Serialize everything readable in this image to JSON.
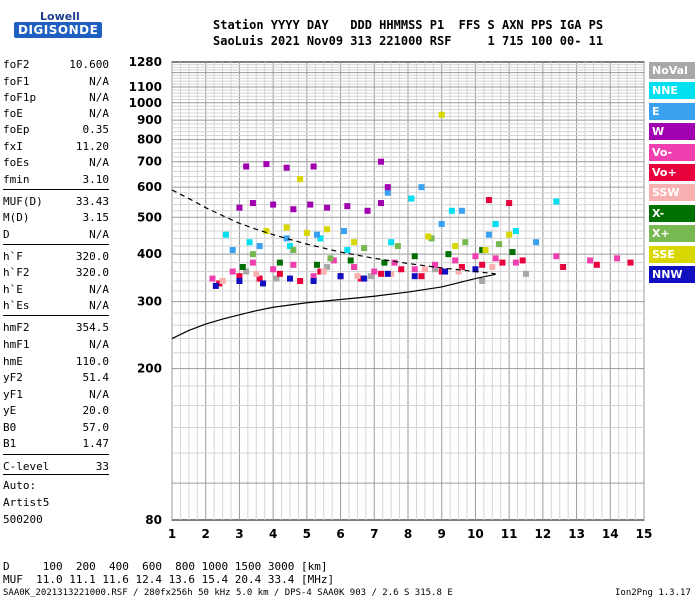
{
  "logo": {
    "lowell": "Lowell",
    "digisonde": "DIGISONDE"
  },
  "header": {
    "line1": "Station YYYY DAY   DDD HHMMSS P1  FFS S AXN PPS IGA PS",
    "line2": "SaoLuis 2021 Nov09 313 221000 RSF     1 715 100 00- 11"
  },
  "params": [
    {
      "name": "foF2",
      "value": "10.600"
    },
    {
      "name": "foF1",
      "value": "N/A"
    },
    {
      "name": "foF1p",
      "value": "N/A"
    },
    {
      "name": "foE",
      "value": "N/A"
    },
    {
      "name": "foEp",
      "value": "0.35"
    },
    {
      "name": "fxI",
      "value": "11.20"
    },
    {
      "name": "foEs",
      "value": "N/A"
    },
    {
      "name": "fmin",
      "value": "3.10"
    },
    {
      "name": "MUF(D)",
      "value": "33.43"
    },
    {
      "name": "M(D)",
      "value": "3.15"
    },
    {
      "name": "D",
      "value": "N/A"
    },
    {
      "name": "h`F",
      "value": "320.0"
    },
    {
      "name": "h`F2",
      "value": "320.0"
    },
    {
      "name": "h`E",
      "value": "N/A"
    },
    {
      "name": "h`Es",
      "value": "N/A"
    },
    {
      "name": "hmF2",
      "value": "354.5"
    },
    {
      "name": "hmF1",
      "value": "N/A"
    },
    {
      "name": "hmE",
      "value": "110.0"
    },
    {
      "name": "yF2",
      "value": "51.4"
    },
    {
      "name": "yF1",
      "value": "N/A"
    },
    {
      "name": "yE",
      "value": "20.0"
    },
    {
      "name": "B0",
      "value": "57.0"
    },
    {
      "name": "B1",
      "value": "1.47"
    },
    {
      "name": "C-level",
      "value": "33"
    }
  ],
  "auto": {
    "line1": "Auto:",
    "line2": "Artist5",
    "line3": "500200"
  },
  "legend": [
    {
      "label": "NoVal",
      "color": "#a8a8a8"
    },
    {
      "label": "NNE",
      "color": "#00e0f0"
    },
    {
      "label": "E",
      "color": "#3aa0f0"
    },
    {
      "label": "W",
      "color": "#a000b0"
    },
    {
      "label": "Vo-",
      "color": "#f040b0"
    },
    {
      "label": "Vo+",
      "color": "#e8003c"
    },
    {
      "label": "SSW",
      "color": "#f8b0b0"
    },
    {
      "label": "X-",
      "color": "#007000"
    },
    {
      "label": "X+",
      "color": "#78b850"
    },
    {
      "label": "SSE",
      "color": "#d8d800"
    },
    {
      "label": "NNW",
      "color": "#1010c0"
    }
  ],
  "footer": {
    "d_row": "D     100  200  400  600  800 1000 1500 3000 [km]",
    "muf_row": "MUF  11.0 11.1 11.6 12.4 13.6 15.4 20.4 33.4 [MHz]",
    "info": "SAA0K_2021313221000.RSF / 280fx256h 50 kHz 5.0 km / DPS-4 SAA0K 903 / 2.6 S 315.8 E",
    "version": "Ion2Png 1.3.17"
  },
  "chart_data": {
    "type": "scatter",
    "title": "",
    "xlabel": "",
    "ylabel": "",
    "xlim": [
      1,
      15
    ],
    "ylim": [
      80,
      1280
    ],
    "x_ticks": [
      1,
      2,
      3,
      4,
      5,
      6,
      7,
      8,
      9,
      10,
      11,
      12,
      13,
      14,
      15
    ],
    "y_tick_labels": [
      80,
      200,
      300,
      400,
      500,
      600,
      700,
      800,
      900,
      1000,
      1100,
      1280
    ],
    "y_scale": "log",
    "grid": true,
    "series": [
      {
        "name": "NoVal",
        "x": [
          3.2,
          4.1,
          5.6,
          6.9,
          8.8,
          10.2,
          11.5
        ],
        "y": [
          360,
          345,
          370,
          350,
          365,
          340,
          355
        ]
      },
      {
        "name": "NNE",
        "x": [
          2.6,
          3.3,
          4.5,
          5.4,
          6.2,
          7.5,
          8.1,
          9.3,
          10.6,
          11.2,
          12.4
        ],
        "y": [
          450,
          430,
          420,
          440,
          410,
          430,
          560,
          520,
          480,
          460,
          550
        ]
      },
      {
        "name": "E",
        "x": [
          2.8,
          3.6,
          4.4,
          5.3,
          6.1,
          7.4,
          8.4,
          9.0,
          9.6,
          10.4,
          11.8
        ],
        "y": [
          410,
          420,
          440,
          450,
          460,
          580,
          600,
          480,
          520,
          450,
          430
        ]
      },
      {
        "name": "W",
        "x": [
          3.0,
          3.4,
          4.0,
          4.6,
          5.1,
          5.6,
          6.2,
          6.8,
          7.2,
          3.2,
          3.8,
          4.4,
          5.2,
          7.2,
          7.4
        ],
        "y": [
          530,
          545,
          540,
          525,
          540,
          530,
          535,
          520,
          545,
          680,
          690,
          675,
          680,
          700,
          600
        ]
      },
      {
        "name": "Vo-",
        "x": [
          2.2,
          2.8,
          3.4,
          4.0,
          4.6,
          5.2,
          5.8,
          6.4,
          7.0,
          7.6,
          8.2,
          8.8,
          9.4,
          10.0,
          10.6,
          11.2,
          12.4,
          13.4,
          14.2
        ],
        "y": [
          345,
          360,
          380,
          365,
          375,
          350,
          385,
          370,
          360,
          380,
          365,
          375,
          385,
          395,
          390,
          380,
          395,
          385,
          390
        ]
      },
      {
        "name": "Vo+",
        "x": [
          2.4,
          3.0,
          3.6,
          4.2,
          4.8,
          5.4,
          6.0,
          6.6,
          7.2,
          7.8,
          8.4,
          9.0,
          9.6,
          10.2,
          10.8,
          11.4,
          10.4,
          11.0,
          12.6,
          13.6,
          14.6
        ],
        "y": [
          335,
          350,
          345,
          355,
          340,
          360,
          350,
          345,
          355,
          365,
          350,
          360,
          370,
          375,
          380,
          385,
          555,
          545,
          370,
          375,
          380
        ]
      },
      {
        "name": "SSW",
        "x": [
          2.5,
          3.5,
          4.5,
          5.5,
          6.5,
          7.5,
          8.5,
          9.5,
          10.5
        ],
        "y": [
          340,
          355,
          345,
          360,
          350,
          355,
          365,
          360,
          370
        ]
      },
      {
        "name": "X-",
        "x": [
          3.1,
          4.2,
          5.3,
          6.3,
          7.3,
          8.2,
          9.2,
          10.2,
          11.1
        ],
        "y": [
          370,
          380,
          375,
          385,
          380,
          395,
          400,
          410,
          405
        ]
      },
      {
        "name": "X+",
        "x": [
          3.4,
          4.6,
          5.7,
          6.7,
          7.7,
          8.7,
          9.7,
          10.7
        ],
        "y": [
          400,
          410,
          390,
          415,
          420,
          440,
          430,
          425
        ]
      },
      {
        "name": "SSE",
        "x": [
          3.8,
          4.4,
          5.0,
          5.6,
          6.4,
          8.6,
          9.4,
          10.3,
          11.0,
          4.8,
          9.0
        ],
        "y": [
          460,
          470,
          455,
          465,
          430,
          445,
          420,
          410,
          450,
          630,
          930
        ]
      },
      {
        "name": "NNW",
        "x": [
          2.3,
          3.0,
          3.7,
          4.5,
          5.2,
          6.0,
          6.7,
          7.4,
          8.2,
          9.1,
          10.0
        ],
        "y": [
          330,
          340,
          335,
          345,
          340,
          350,
          345,
          355,
          350,
          360,
          365
        ]
      }
    ],
    "profile_curve": {
      "x": [
        1.0,
        1.5,
        2.0,
        2.5,
        3.0,
        3.5,
        4.0,
        5.0,
        6.0,
        7.0,
        8.0,
        9.0,
        10.0,
        10.6
      ],
      "y": [
        240,
        252,
        262,
        270,
        277,
        284,
        290,
        298,
        304,
        310,
        318,
        328,
        345,
        354
      ]
    },
    "extrapolated_curve": {
      "x": [
        1.0,
        1.5,
        2.0,
        2.5,
        3.0,
        3.5,
        4.0,
        5.0,
        6.0,
        7.0,
        8.0,
        9.0,
        10.0,
        10.6
      ],
      "y": [
        590,
        560,
        530,
        505,
        482,
        465,
        450,
        425,
        405,
        390,
        378,
        368,
        360,
        355
      ]
    }
  }
}
